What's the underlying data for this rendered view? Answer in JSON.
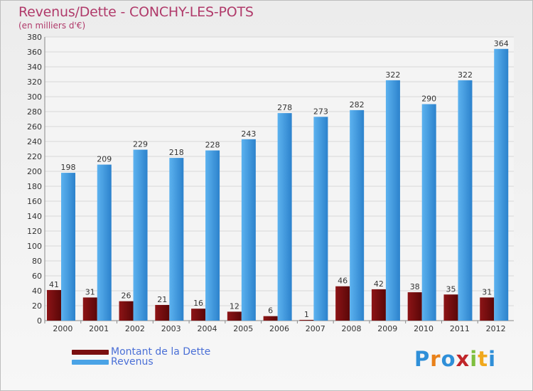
{
  "header": {
    "title": "Revenus/Dette - CONCHY-LES-POTS",
    "subtitle": "(en milliers d'€)"
  },
  "legend": [
    {
      "label": "Montant de la Dette",
      "color": "#7a0f10"
    },
    {
      "label": "Revenus",
      "color": "#4aa3e6"
    }
  ],
  "logo": {
    "text": "Proxiti",
    "colors": [
      "#2f8fd8",
      "#e8811a",
      "#2f8fd8",
      "#c0262a",
      "#7fbf3f",
      "#f0a81d",
      "#2f8fd8"
    ]
  },
  "chart_data": {
    "type": "bar",
    "title": "Revenus/Dette - CONCHY-LES-POTS",
    "subtitle": "(en milliers d'€)",
    "categories": [
      "2000",
      "2001",
      "2002",
      "2003",
      "2004",
      "2005",
      "2006",
      "2007",
      "2008",
      "2009",
      "2010",
      "2011",
      "2012"
    ],
    "series": [
      {
        "name": "Montant de la Dette",
        "color": "#7a0f10",
        "values": [
          41,
          31,
          26,
          21,
          16,
          12,
          6,
          1,
          46,
          42,
          38,
          35,
          31
        ]
      },
      {
        "name": "Revenus",
        "color": "#4aa3e6",
        "values": [
          198,
          209,
          229,
          218,
          228,
          243,
          278,
          273,
          282,
          322,
          290,
          322,
          364
        ]
      }
    ],
    "ylim": [
      0,
      380
    ],
    "ytick_step": 20,
    "grid": true,
    "data_labels": true,
    "legend_position": "bottom-left"
  }
}
